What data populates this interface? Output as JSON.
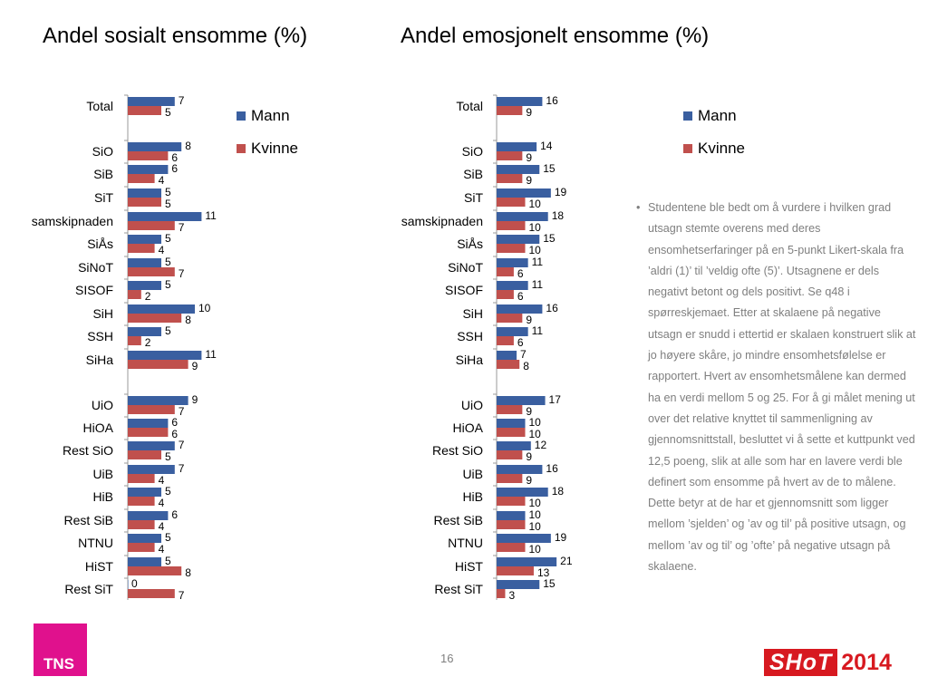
{
  "colors": {
    "mann": "#3a5fa0",
    "kvinne": "#c0504d"
  },
  "footer": {
    "page_number": "16",
    "tns_logo": "TNS",
    "shot_logo": "SHoT",
    "shot_year": "2014"
  },
  "note": {
    "bullet": "•",
    "text": "Studentene ble bedt om å vurdere i hvilken grad utsagn stemte overens med deres ensomhetserfaringer på en 5-punkt Likert-skala fra ’aldri (1)’ til ’veldig ofte (5)’. Utsagnene er dels negativt betont og dels positivt. Se q48 i spørreskjemaet. Etter at skalaene på negative utsagn er snudd i ettertid er skalaen konstruert slik at jo høyere skåre, jo mindre ensomhetsfølelse er rapportert. Hvert av ensomhetsmålene kan dermed ha en verdi mellom 5 og 25. For å gi målet mening ut over det relative knyttet til sammenligning av gjennomsnittstall, besluttet vi å sette et kuttpunkt ved 12,5 poeng, slik at alle som har en lavere verdi ble definert som ensomme på hvert av de to målene. Dette betyr at de har et gjennomsnitt som ligger mellom ’sjelden’ og ’av og til’ på positive utsagn, og mellom ’av og til’ og ’ofte’ på negative utsagn på skalaene."
  },
  "chart_data": [
    {
      "type": "bar",
      "orientation": "horizontal",
      "title": "Andel sosialt ensomme (%)",
      "categories": [
        "Total",
        "SiO",
        "SiB",
        "SiT",
        "samskipnaden",
        "SiÅs",
        "SiNoT",
        "SISOF",
        "SiH",
        "SSH",
        "SiHa",
        "UiO",
        "HiOA",
        "Rest SiO",
        "UiB",
        "HiB",
        "Rest SiB",
        "NTNU",
        "HiST",
        "Rest SiT"
      ],
      "series": [
        {
          "name": "Mann",
          "values": [
            7,
            8,
            6,
            5,
            11,
            5,
            5,
            5,
            10,
            5,
            11,
            9,
            6,
            7,
            7,
            5,
            6,
            5,
            5,
            0
          ]
        },
        {
          "name": "Kvinne",
          "values": [
            5,
            6,
            4,
            5,
            7,
            4,
            7,
            2,
            8,
            2,
            9,
            7,
            6,
            5,
            4,
            4,
            4,
            4,
            8,
            7
          ]
        }
      ],
      "legend_position": "right-top",
      "grid": false
    },
    {
      "type": "bar",
      "orientation": "horizontal",
      "title": "Andel emosjonelt ensomme (%)",
      "categories": [
        "Total",
        "SiO",
        "SiB",
        "SiT",
        "samskipnaden",
        "SiÅs",
        "SiNoT",
        "SISOF",
        "SiH",
        "SSH",
        "SiHa",
        "UiO",
        "HiOA",
        "Rest SiO",
        "UiB",
        "HiB",
        "Rest SiB",
        "NTNU",
        "HiST",
        "Rest SiT"
      ],
      "series": [
        {
          "name": "Mann",
          "values": [
            16,
            14,
            15,
            19,
            18,
            15,
            11,
            11,
            16,
            11,
            7,
            17,
            10,
            12,
            16,
            18,
            10,
            19,
            21,
            15
          ]
        },
        {
          "name": "Kvinne",
          "values": [
            9,
            9,
            9,
            10,
            10,
            10,
            6,
            6,
            9,
            6,
            8,
            9,
            10,
            9,
            9,
            10,
            10,
            10,
            13,
            3
          ]
        }
      ],
      "legend_position": "right-top",
      "grid": false
    }
  ]
}
